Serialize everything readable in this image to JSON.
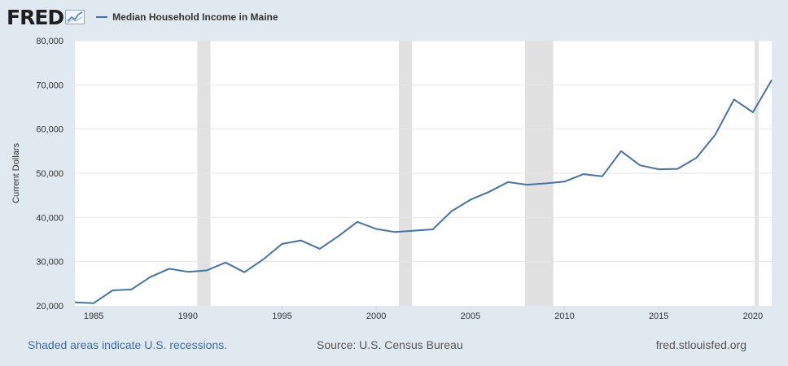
{
  "header": {
    "logo_text": "FRED",
    "legend_label": "Median Household Income in Maine",
    "series_color": "#4572a7"
  },
  "footer": {
    "recession_note": "Shaded areas indicate U.S. recessions.",
    "source": "Source: U.S. Census Bureau",
    "url": "fred.stlouisfed.org"
  },
  "chart_data": {
    "type": "line",
    "ylabel": "Current Dollars",
    "xlabel": "",
    "ylim": [
      20000,
      80000
    ],
    "xlim": [
      1984,
      2021
    ],
    "y_ticks": [
      20000,
      30000,
      40000,
      50000,
      60000,
      70000,
      80000
    ],
    "y_tick_labels": [
      "20,000",
      "30,000",
      "40,000",
      "50,000",
      "60,000",
      "70,000",
      "80,000"
    ],
    "x_ticks": [
      1985,
      1990,
      1995,
      2000,
      2005,
      2010,
      2015,
      2020
    ],
    "x_tick_labels": [
      "1985",
      "1990",
      "1995",
      "2000",
      "2005",
      "2010",
      "2015",
      "2020"
    ],
    "grid": true,
    "recessions": [
      [
        1990.5,
        1991.2
      ],
      [
        2001.2,
        2001.9
      ],
      [
        2007.9,
        2009.4
      ],
      [
        2020.1,
        2020.3
      ]
    ],
    "series": [
      {
        "name": "Median Household Income in Maine",
        "color": "#4572a7",
        "x": [
          1984,
          1985,
          1986,
          1987,
          1988,
          1989,
          1990,
          1991,
          1992,
          1993,
          1994,
          1995,
          1996,
          1997,
          1998,
          1999,
          2000,
          2001,
          2002,
          2003,
          2004,
          2005,
          2006,
          2007,
          2008,
          2009,
          2010,
          2011,
          2012,
          2013,
          2014,
          2015,
          2016,
          2017,
          2018,
          2019,
          2020,
          2021
        ],
        "values": [
          20800,
          20600,
          23500,
          23700,
          26500,
          28400,
          27700,
          28000,
          29800,
          27600,
          30500,
          34000,
          34800,
          32900,
          35800,
          39000,
          37400,
          36700,
          37000,
          37300,
          41400,
          44000,
          45800,
          48000,
          47400,
          47700,
          48100,
          49800,
          49300,
          55000,
          51800,
          50900,
          51000,
          53500,
          58700,
          66700,
          63800,
          71100
        ]
      }
    ]
  }
}
